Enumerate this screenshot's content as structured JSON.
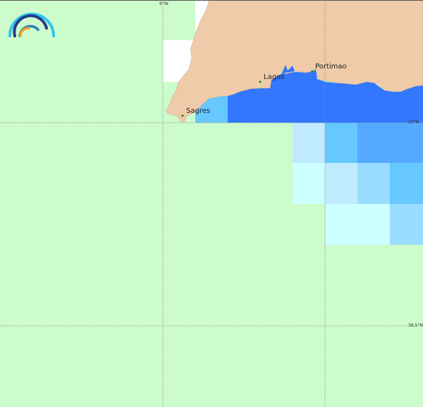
{
  "map": {
    "grid_labels": {
      "lon_9w": "9°W",
      "lat_37n": "37°N",
      "lat_36_5n": "36.5°N"
    },
    "places": [
      {
        "name": "Sagres"
      },
      {
        "name": "Lagos"
      },
      {
        "name": "Portimao"
      }
    ],
    "colors": {
      "sea_background": "#ccfccc",
      "land": "#efcba9",
      "coastal_sea": "#3377ff",
      "level_1": "#ccffff",
      "level_2": "#c0eaff",
      "level_3": "#99dcff",
      "level_4": "#66c8ff",
      "level_5": "#55aaff",
      "no_data": "#ffffff",
      "town_marker": "#118811"
    },
    "logo": "rainbow-arc-logo"
  }
}
